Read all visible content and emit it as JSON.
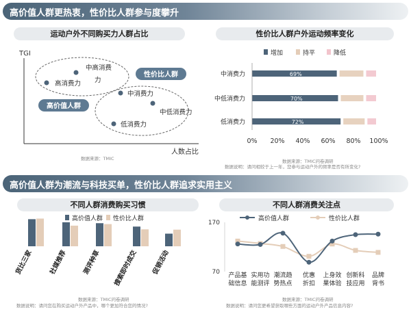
{
  "section1": {
    "title": "高价值人群更热衷，性价比人群参与度攀升"
  },
  "section2": {
    "title": "高价值人群为潮流与科技买单，性价比人群追求实用主义"
  },
  "charts": {
    "scatter_title": "运动户外不同购买力人群占比",
    "freq_title": "性价比人群户外运动频率变化",
    "habit_title": "不同人群消费购买习惯",
    "focus_title": "不同人群消费关注点"
  },
  "sources": {
    "scatter": "数据来源：TMIC",
    "freq": "数据来源：TMIC问卷调研",
    "freq_note": "数据说明：请问相较于上一年，您参与运动户外的频率是否有所变化?",
    "habit": "数据来源：TMIC问卷调研",
    "habit_note": "数据说明：请问您在购买运动户外产品中，哪个更加符合您的情况?",
    "focus": "数据来源：TMIC问卷调研",
    "focus_note": "数据说明：请问您更希望获取哪些方面的运动户外产品信息内容?"
  },
  "colors": {
    "navy": "#4d6479",
    "tan": "#e4cdb8",
    "pink": "#f2c4cc",
    "grey": "#b3b3b3",
    "light": "#d9dee3"
  },
  "chart_data": [
    {
      "type": "scatter",
      "xlabel": "人数占比",
      "ylabel": "TGI",
      "points": [
        {
          "label": "中高消费力",
          "group": "高价值人群"
        },
        {
          "label": "高消费力",
          "group": "高价值人群"
        },
        {
          "label": "中消费力",
          "group": "性价比人群"
        },
        {
          "label": "中低消费力",
          "group": "性价比人群"
        },
        {
          "label": "低消费力",
          "group": "性价比人群"
        }
      ],
      "groups": [
        "高价值人群",
        "性价比人群"
      ]
    },
    {
      "type": "bar",
      "stacked": true,
      "horizontal": true,
      "categories": [
        "中消费力",
        "中低消费力",
        "低消费力"
      ],
      "series": [
        {
          "name": "增加",
          "values": [
            69,
            70,
            72
          ],
          "labels": [
            "69%",
            "70%",
            "72%"
          ]
        },
        {
          "name": "持平",
          "values": [
            21,
            20,
            19
          ]
        },
        {
          "name": "降低",
          "values": [
            10,
            10,
            9
          ]
        }
      ],
      "xticks": [
        "0%",
        "20%",
        "40%",
        "60%",
        "80%",
        "100%"
      ],
      "xlim": [
        0,
        100
      ]
    },
    {
      "type": "bar",
      "categories": [
        "货比三家",
        "社媒推荐",
        "测评种草",
        "搜索即时成交",
        "促销活动"
      ],
      "series": [
        {
          "name": "高价值人群",
          "values": [
            0.88,
            0.78,
            0.75,
            0.64,
            0.41
          ]
        },
        {
          "name": "性价比人群",
          "values": [
            0.9,
            0.67,
            0.72,
            0.55,
            0.54
          ]
        }
      ],
      "ylim": [
        0,
        1
      ]
    },
    {
      "type": "line",
      "categories": [
        "产品基础信息",
        "实用功能测评",
        "潮流趋势热点",
        "优惠折扣",
        "上身效果体验",
        "创新科技应用",
        "品牌背书"
      ],
      "category_lines": [
        [
          "产品基",
          "础信息"
        ],
        [
          "实用功",
          "能测评"
        ],
        [
          "潮流趋",
          "势热点"
        ],
        [
          "优惠",
          "折扣"
        ],
        [
          "上身效",
          "果体验"
        ],
        [
          "创新科",
          "技应用"
        ],
        [
          "品牌",
          "背书"
        ]
      ],
      "series": [
        {
          "name": "高价值人群",
          "values": [
            126,
            125,
            148,
            89,
            132,
            145,
            146
          ]
        },
        {
          "name": "性价比人群",
          "values": [
            132,
            127,
            121,
            101,
            126,
            113,
            109
          ]
        }
      ],
      "yticks": [
        "170",
        "70"
      ],
      "ylim": [
        70,
        170
      ]
    }
  ]
}
